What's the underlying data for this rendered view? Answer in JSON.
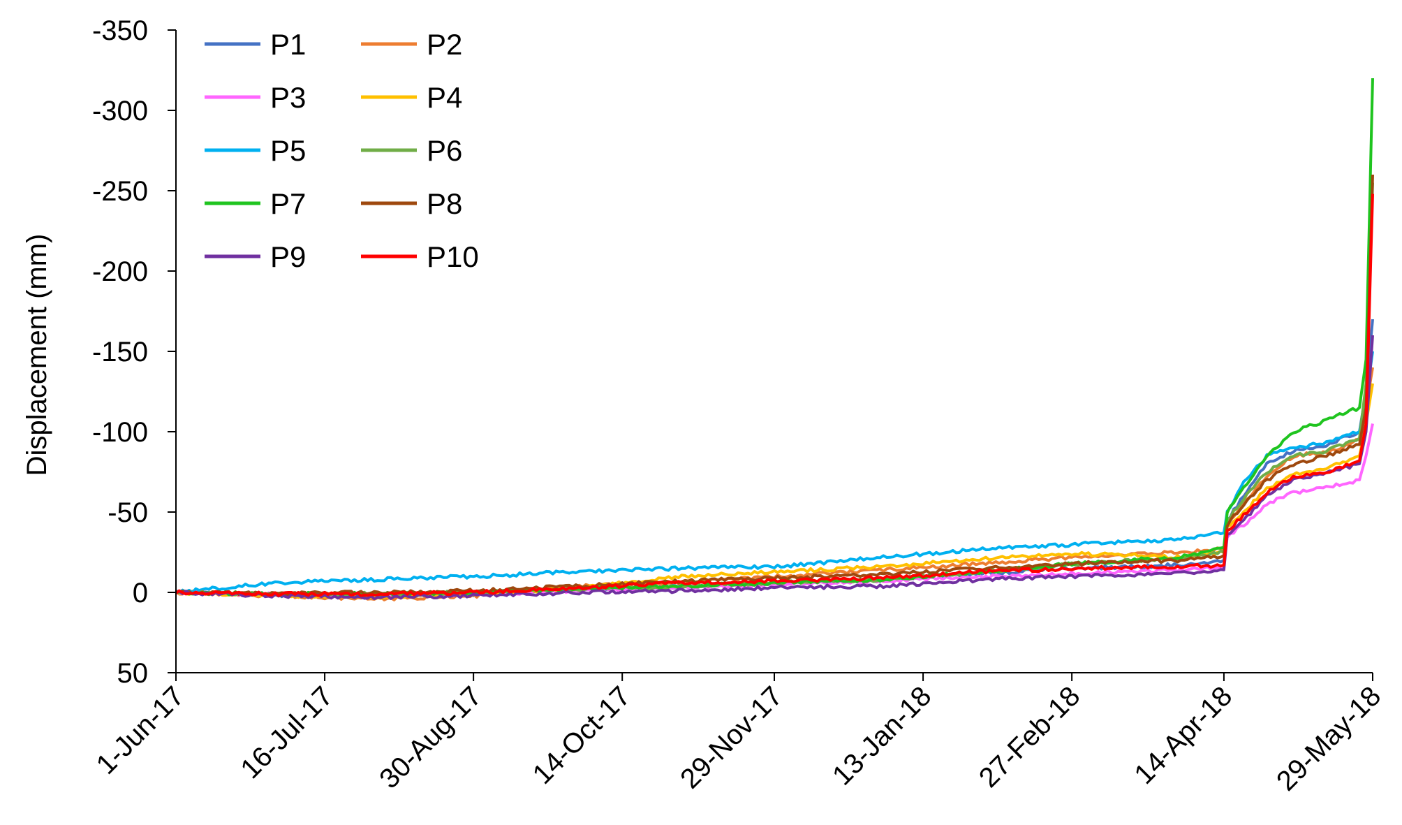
{
  "chart_data": {
    "type": "line",
    "title": "",
    "xlabel": "",
    "ylabel": "Displacement (mm)",
    "y_inverted": true,
    "ylim": [
      50,
      -350
    ],
    "yticks": [
      50,
      0,
      -50,
      -100,
      -150,
      -200,
      -250,
      -300,
      -350
    ],
    "ytick_labels": [
      "50",
      "0",
      "-50",
      "-100",
      "-150",
      "-200",
      "-250",
      "-300",
      "-350"
    ],
    "xlim": [
      "2017-06-01",
      "2018-05-29"
    ],
    "xticks": [
      "2017-06-01",
      "2017-07-16",
      "2017-08-30",
      "2017-10-14",
      "2017-11-29",
      "2018-01-13",
      "2018-02-27",
      "2018-04-14",
      "2018-05-29"
    ],
    "xtick_labels": [
      "1-Jun-17",
      "16-Jul-17",
      "30-Aug-17",
      "14-Oct-17",
      "29-Nov-17",
      "13-Jan-18",
      "27-Feb-18",
      "14-Apr-18",
      "29-May-18"
    ],
    "legend_position": "top-left",
    "grid": false,
    "series": [
      {
        "name": "P1",
        "color": "#4472C4",
        "x": [
          "2017-06-01",
          "2017-07-01",
          "2017-08-01",
          "2017-09-01",
          "2017-10-01",
          "2017-11-01",
          "2017-12-01",
          "2018-01-01",
          "2018-02-01",
          "2018-03-01",
          "2018-04-01",
          "2018-04-14",
          "2018-04-15",
          "2018-04-20",
          "2018-04-27",
          "2018-05-05",
          "2018-05-15",
          "2018-05-25",
          "2018-05-27",
          "2018-05-29"
        ],
        "y": [
          0,
          2,
          2,
          1,
          -2,
          -4,
          -6,
          -8,
          -12,
          -15,
          -17,
          -20,
          -45,
          -60,
          -80,
          -88,
          -92,
          -100,
          -125,
          -170
        ]
      },
      {
        "name": "P2",
        "color": "#ED7D31",
        "x": [
          "2017-06-01",
          "2017-07-01",
          "2017-08-01",
          "2017-09-01",
          "2017-10-01",
          "2017-11-01",
          "2017-12-01",
          "2018-01-01",
          "2018-02-01",
          "2018-03-01",
          "2018-04-01",
          "2018-04-14",
          "2018-04-15",
          "2018-04-20",
          "2018-04-27",
          "2018-05-05",
          "2018-05-15",
          "2018-05-25",
          "2018-05-27",
          "2018-05-29"
        ],
        "y": [
          0,
          2,
          4,
          2,
          -4,
          -6,
          -10,
          -14,
          -18,
          -22,
          -25,
          -27,
          -42,
          -55,
          -73,
          -85,
          -87,
          -95,
          -115,
          -140
        ]
      },
      {
        "name": "P3",
        "color": "#FF66FF",
        "x": [
          "2017-06-01",
          "2017-07-01",
          "2017-08-01",
          "2017-09-01",
          "2017-10-01",
          "2017-11-01",
          "2017-12-01",
          "2018-01-01",
          "2018-02-01",
          "2018-03-01",
          "2018-04-01",
          "2018-04-14",
          "2018-04-15",
          "2018-04-20",
          "2018-04-27",
          "2018-05-05",
          "2018-05-15",
          "2018-05-25",
          "2018-05-27",
          "2018-05-29"
        ],
        "y": [
          0,
          1,
          2,
          1,
          -1,
          -3,
          -5,
          -7,
          -10,
          -12,
          -14,
          -16,
          -35,
          -42,
          -55,
          -62,
          -65,
          -70,
          -85,
          -105
        ]
      },
      {
        "name": "P4",
        "color": "#FFC000",
        "x": [
          "2017-06-01",
          "2017-07-01",
          "2017-08-01",
          "2017-09-01",
          "2017-10-01",
          "2017-11-01",
          "2017-12-01",
          "2018-01-01",
          "2018-02-01",
          "2018-03-01",
          "2018-04-01",
          "2018-04-14",
          "2018-04-15",
          "2018-04-20",
          "2018-04-27",
          "2018-05-05",
          "2018-05-15",
          "2018-05-25",
          "2018-05-27",
          "2018-05-29"
        ],
        "y": [
          0,
          2,
          3,
          1,
          -3,
          -10,
          -13,
          -16,
          -21,
          -24,
          -22,
          -25,
          -40,
          -50,
          -65,
          -73,
          -77,
          -85,
          -105,
          -130
        ]
      },
      {
        "name": "P5",
        "color": "#00B0F0",
        "x": [
          "2017-06-01",
          "2017-07-01",
          "2017-08-01",
          "2017-09-01",
          "2017-10-01",
          "2017-11-01",
          "2017-12-01",
          "2018-01-01",
          "2018-02-01",
          "2018-03-01",
          "2018-04-01",
          "2018-04-14",
          "2018-04-15",
          "2018-04-20",
          "2018-04-27",
          "2018-05-05",
          "2018-05-15",
          "2018-05-25",
          "2018-05-27",
          "2018-05-29"
        ],
        "y": [
          0,
          -6,
          -8,
          -10,
          -13,
          -15,
          -16,
          -22,
          -27,
          -30,
          -33,
          -37,
          -50,
          -68,
          -85,
          -90,
          -93,
          -100,
          -120,
          -150
        ]
      },
      {
        "name": "P6",
        "color": "#70AD47",
        "x": [
          "2017-06-01",
          "2017-07-01",
          "2017-08-01",
          "2017-09-01",
          "2017-10-01",
          "2017-11-01",
          "2017-12-01",
          "2018-01-01",
          "2018-02-01",
          "2018-03-01",
          "2018-04-01",
          "2018-04-14",
          "2018-04-15",
          "2018-04-20",
          "2018-04-27",
          "2018-05-05",
          "2018-05-15",
          "2018-05-25",
          "2018-05-27",
          "2018-05-29"
        ],
        "y": [
          0,
          1,
          1,
          0,
          -2,
          -4,
          -6,
          -8,
          -13,
          -18,
          -21,
          -25,
          -45,
          -58,
          -75,
          -85,
          -88,
          -96,
          -130,
          -255
        ]
      },
      {
        "name": "P7",
        "color": "#1FC41F",
        "x": [
          "2017-06-01",
          "2017-07-01",
          "2017-08-01",
          "2017-09-01",
          "2017-10-01",
          "2017-11-01",
          "2017-12-01",
          "2018-01-01",
          "2018-02-01",
          "2018-03-01",
          "2018-04-01",
          "2018-04-14",
          "2018-04-15",
          "2018-04-20",
          "2018-04-27",
          "2018-05-05",
          "2018-05-15",
          "2018-05-25",
          "2018-05-27",
          "2018-05-29"
        ],
        "y": [
          0,
          1,
          1,
          0,
          -2,
          -4,
          -6,
          -8,
          -13,
          -18,
          -22,
          -28,
          -50,
          -65,
          -85,
          -100,
          -107,
          -115,
          -145,
          -320
        ]
      },
      {
        "name": "P8",
        "color": "#9E480E",
        "x": [
          "2017-06-01",
          "2017-07-01",
          "2017-08-01",
          "2017-09-01",
          "2017-10-01",
          "2017-11-01",
          "2017-12-01",
          "2018-01-01",
          "2018-02-01",
          "2018-03-01",
          "2018-04-01",
          "2018-04-14",
          "2018-04-15",
          "2018-04-20",
          "2018-04-27",
          "2018-05-05",
          "2018-05-15",
          "2018-05-25",
          "2018-05-27",
          "2018-05-29"
        ],
        "y": [
          0,
          1,
          0,
          -1,
          -4,
          -7,
          -9,
          -11,
          -15,
          -18,
          -20,
          -23,
          -42,
          -55,
          -70,
          -80,
          -85,
          -92,
          -115,
          -260
        ]
      },
      {
        "name": "P9",
        "color": "#7030A0",
        "x": [
          "2017-06-01",
          "2017-07-01",
          "2017-08-01",
          "2017-09-01",
          "2017-10-01",
          "2017-11-01",
          "2017-12-01",
          "2018-01-01",
          "2018-02-01",
          "2018-03-01",
          "2018-04-01",
          "2018-04-14",
          "2018-04-15",
          "2018-04-20",
          "2018-04-27",
          "2018-05-05",
          "2018-05-15",
          "2018-05-25",
          "2018-05-27",
          "2018-05-29"
        ],
        "y": [
          0,
          2,
          3,
          2,
          0,
          -1,
          -3,
          -4,
          -8,
          -10,
          -12,
          -14,
          -35,
          -45,
          -60,
          -70,
          -74,
          -80,
          -100,
          -160
        ]
      },
      {
        "name": "P10",
        "color": "#FF0000",
        "x": [
          "2017-06-01",
          "2017-07-01",
          "2017-08-01",
          "2017-09-01",
          "2017-10-01",
          "2017-11-01",
          "2017-12-01",
          "2018-01-01",
          "2018-02-01",
          "2018-03-01",
          "2018-04-01",
          "2018-04-14",
          "2018-04-15",
          "2018-04-20",
          "2018-04-27",
          "2018-05-05",
          "2018-05-15",
          "2018-05-25",
          "2018-05-27",
          "2018-05-29"
        ],
        "y": [
          0,
          1,
          1,
          0,
          -3,
          -6,
          -7,
          -9,
          -13,
          -15,
          -16,
          -17,
          -38,
          -48,
          -62,
          -72,
          -75,
          -82,
          -105,
          -248
        ]
      }
    ]
  }
}
